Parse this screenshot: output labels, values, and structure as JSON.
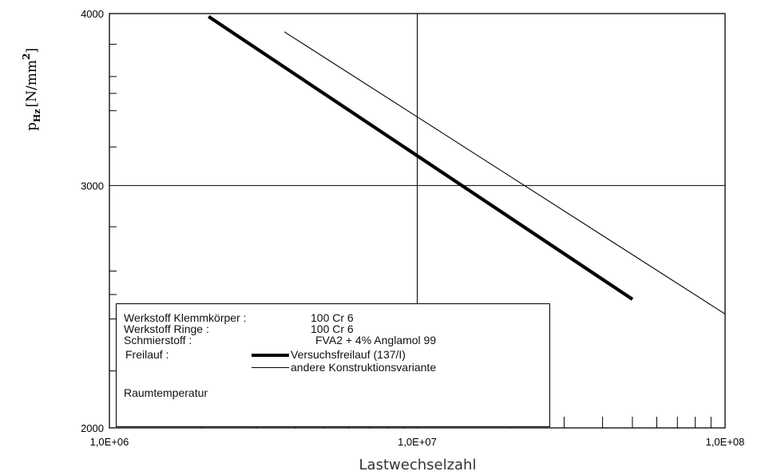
{
  "chart_data": {
    "type": "line",
    "title": "",
    "xlabel": "Lastwechselzahl",
    "ylabel_main": "p",
    "ylabel_sub": "Hz",
    "ylabel_unit": "[N/mm",
    "ylabel_sup": "2",
    "ylabel_close": "]",
    "x_scale": "log",
    "y_scale": "log",
    "xlim": [
      1000000,
      100000000
    ],
    "ylim": [
      2000,
      4000
    ],
    "x_tick_labels": [
      "1,0E+06",
      "1,0E+07",
      "1,0E+08"
    ],
    "y_tick_labels": [
      "2000",
      "3000",
      "4000"
    ],
    "grid": "major",
    "series": [
      {
        "name": "Versuchsfreilauf (137/I)",
        "style": "thick",
        "x": [
          2100000,
          50000000
        ],
        "y": [
          3980,
          2480
        ]
      },
      {
        "name": "andere Konstruktionsvariante",
        "style": "thin",
        "x": [
          3700000,
          100000000
        ],
        "y": [
          3880,
          2420
        ]
      }
    ]
  },
  "legend": {
    "rows": [
      {
        "label": "Werkstoff Klemmkörper :",
        "value": "100 Cr 6"
      },
      {
        "label": "Werkstoff Ringe :",
        "value": "100 Cr 6"
      },
      {
        "label": "Schmierstoff :",
        "value": "FVA2 + 4% Anglamol 99"
      },
      {
        "label": "Freilauf :",
        "value": "Versuchsfreilauf (137/I)"
      },
      {
        "label": "",
        "value": "andere Konstruktionsvariante"
      }
    ],
    "footer": "Raumtemperatur"
  }
}
